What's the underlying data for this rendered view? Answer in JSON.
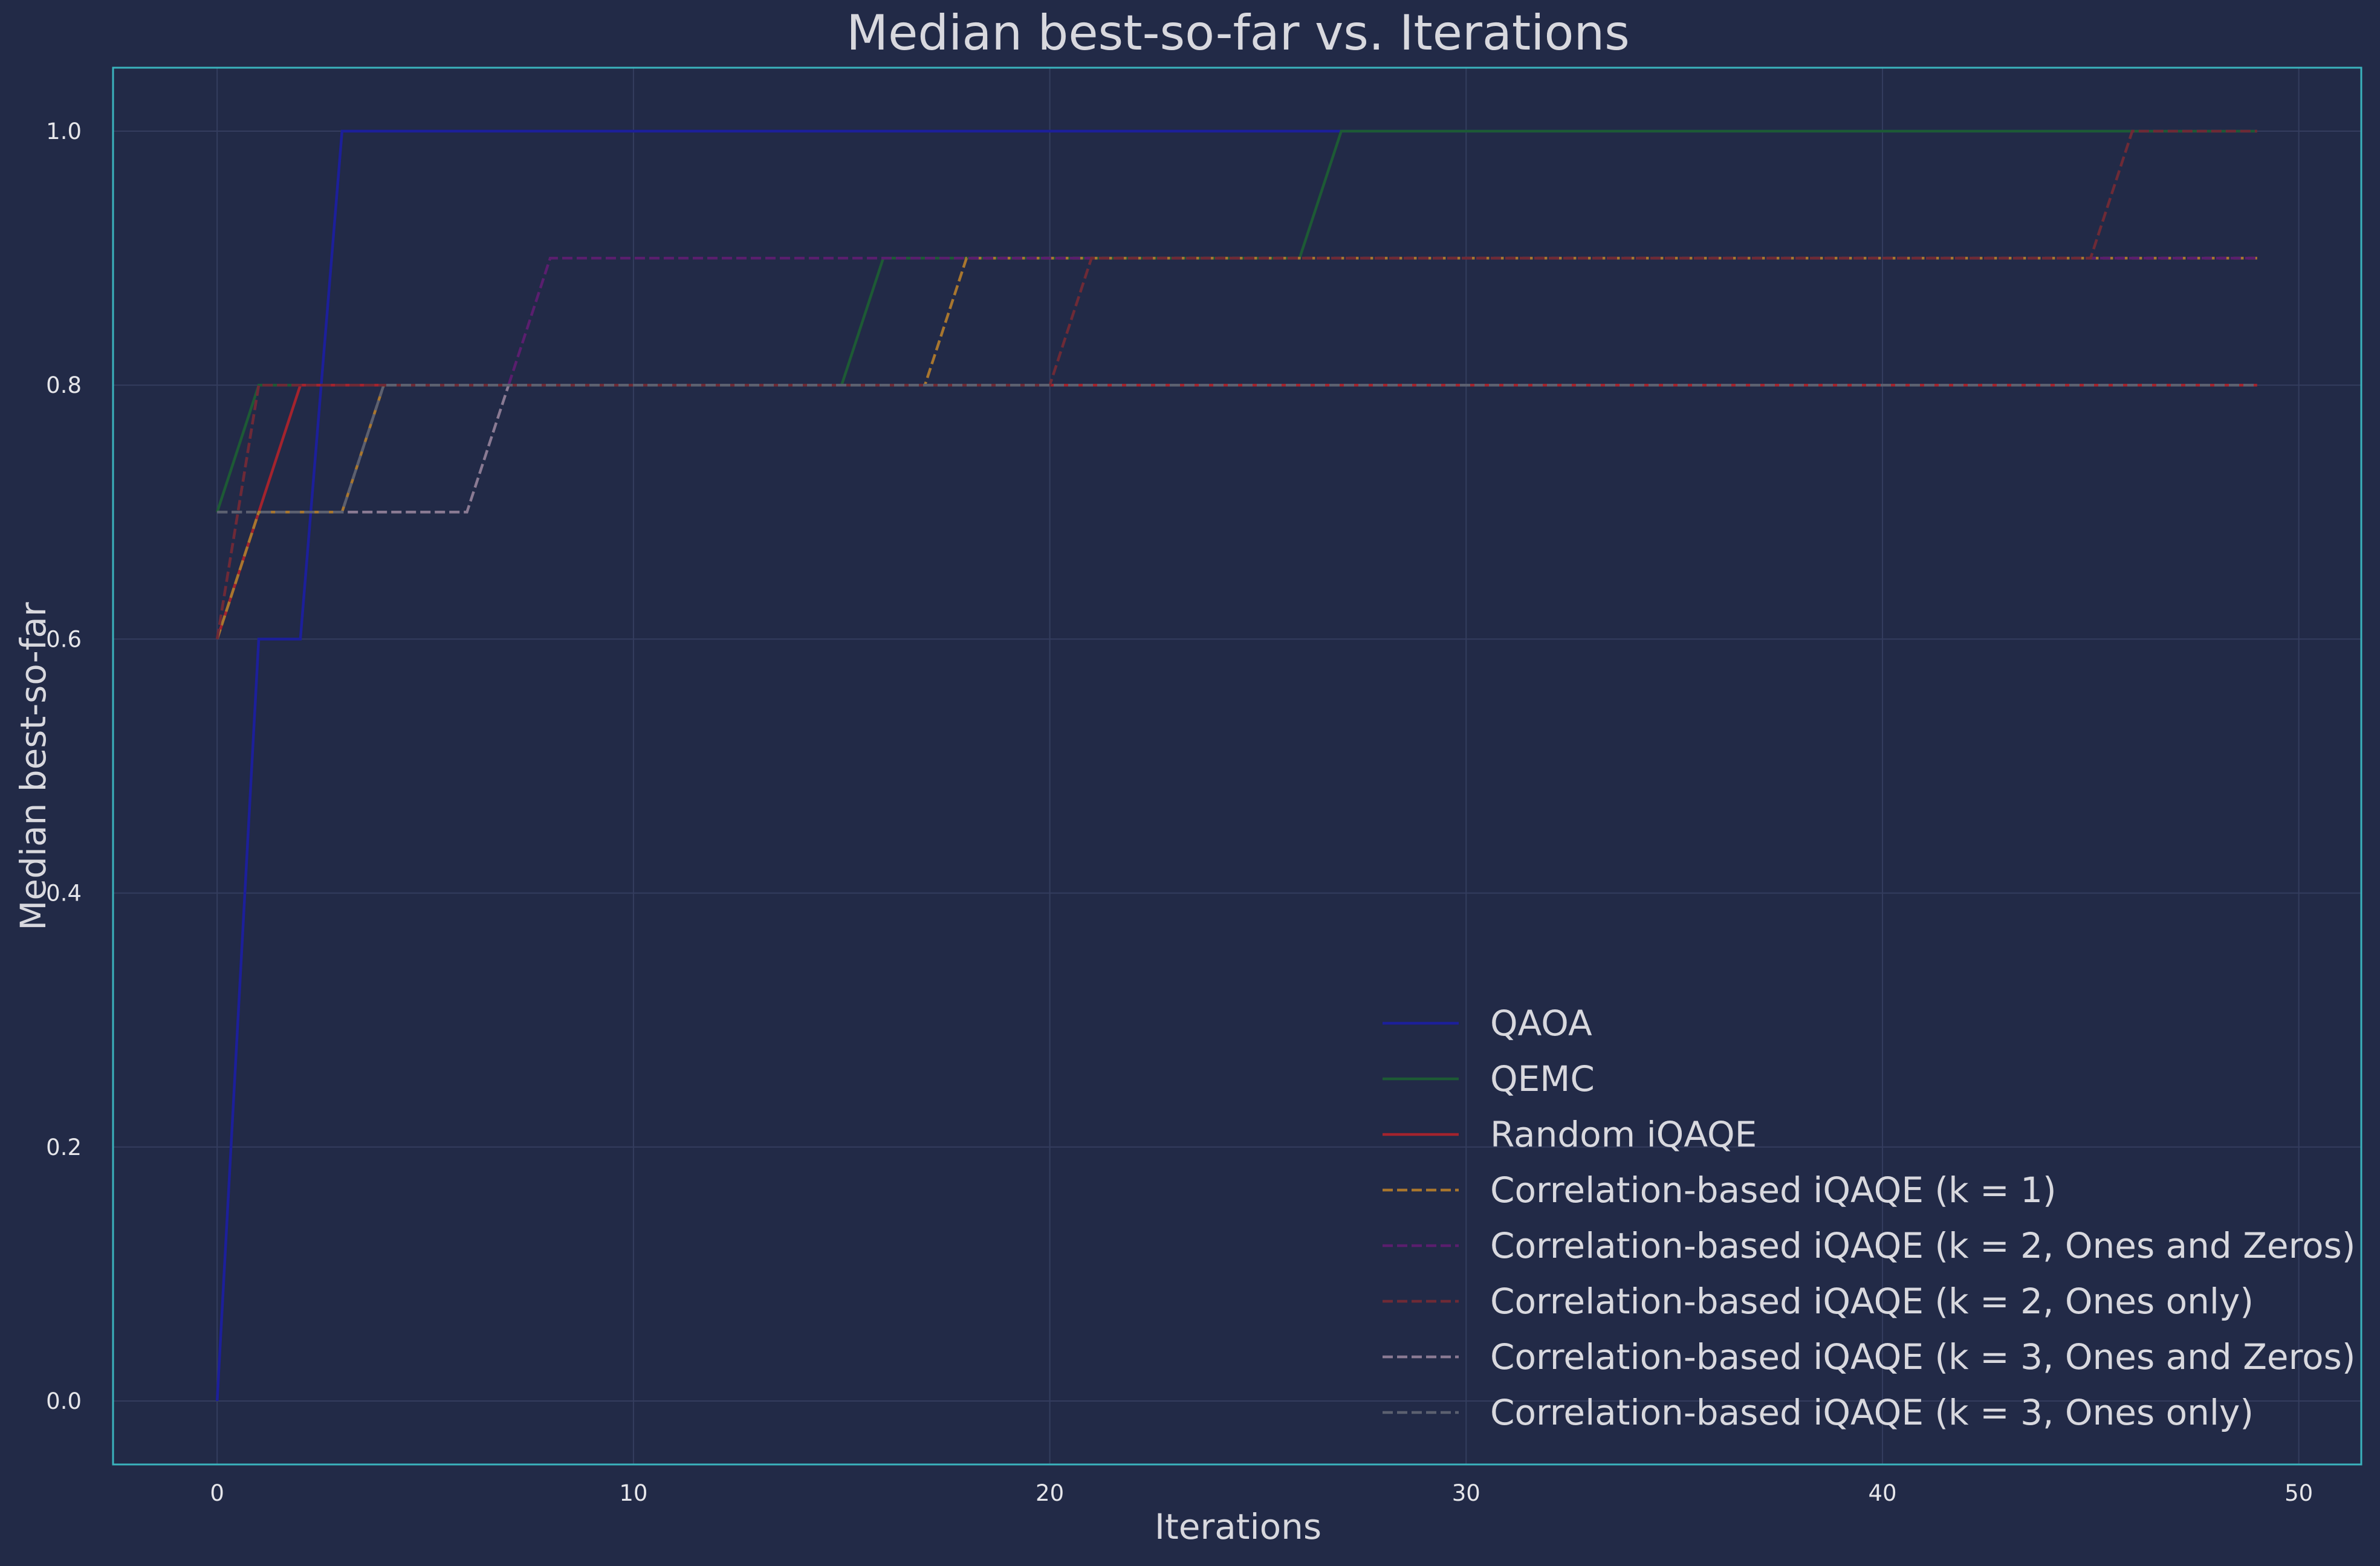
{
  "chart_data": {
    "type": "line",
    "title": "Median best-so-far vs. Iterations",
    "xlabel": "Iterations",
    "ylabel": "Median best-so-far",
    "xlim": [
      -2.5,
      51.5
    ],
    "ylim": [
      -0.05,
      1.05
    ],
    "xticks": [
      0,
      10,
      20,
      30,
      40,
      50
    ],
    "yticks": [
      0.0,
      0.2,
      0.4,
      0.6,
      0.8,
      1.0
    ],
    "grid": true,
    "legend_position": "lower right",
    "series": [
      {
        "name": "QAOA",
        "color": "#1c1f9a",
        "dashed": false,
        "points": [
          [
            0,
            0.0
          ],
          [
            1,
            0.6
          ],
          [
            2,
            0.6
          ],
          [
            3,
            1.0
          ],
          [
            27,
            1.0
          ],
          [
            49,
            1.0
          ]
        ]
      },
      {
        "name": "QEMC",
        "color": "#1d5a35",
        "dashed": false,
        "points": [
          [
            0,
            0.7
          ],
          [
            1,
            0.8
          ],
          [
            15,
            0.8
          ],
          [
            16,
            0.9
          ],
          [
            26,
            0.9
          ],
          [
            27,
            1.0
          ],
          [
            49,
            1.0
          ]
        ]
      },
      {
        "name": "Random iQAQE",
        "color": "#a3232d",
        "dashed": false,
        "points": [
          [
            0,
            0.6
          ],
          [
            2,
            0.8
          ],
          [
            49,
            0.8
          ]
        ]
      },
      {
        "name": "Correlation-based iQAQE (k = 1)",
        "color": "#a8762e",
        "dashed": true,
        "points": [
          [
            0,
            0.6
          ],
          [
            1,
            0.7
          ],
          [
            3,
            0.7
          ],
          [
            4,
            0.8
          ],
          [
            17,
            0.8
          ],
          [
            18,
            0.9
          ],
          [
            49,
            0.9
          ]
        ]
      },
      {
        "name": "Correlation-based iQAQE (k = 2, Ones and Zeros)",
        "color": "#5a1e6e",
        "dashed": true,
        "points": [
          [
            0,
            0.6
          ],
          [
            1,
            0.8
          ],
          [
            7,
            0.8
          ],
          [
            8,
            0.9
          ],
          [
            49,
            0.9
          ]
        ]
      },
      {
        "name": "Correlation-based iQAQE (k = 2, Ones only)",
        "color": "#6e2a36",
        "dashed": true,
        "points": [
          [
            0,
            0.6
          ],
          [
            1,
            0.8
          ],
          [
            20,
            0.8
          ],
          [
            21,
            0.9
          ],
          [
            45,
            0.9
          ],
          [
            46,
            1.0
          ],
          [
            49,
            1.0
          ]
        ]
      },
      {
        "name": "Correlation-based iQAQE (k = 3, Ones and Zeros)",
        "color": "#8a7a93",
        "dashed": true,
        "points": [
          [
            0,
            0.7
          ],
          [
            6,
            0.7
          ],
          [
            7,
            0.8
          ],
          [
            49,
            0.8
          ]
        ]
      },
      {
        "name": "Correlation-based iQAQE (k = 3, Ones only)",
        "color": "#5c6070",
        "dashed": true,
        "points": [
          [
            0,
            0.7
          ],
          [
            3,
            0.7
          ],
          [
            4,
            0.8
          ],
          [
            49,
            0.8
          ]
        ]
      }
    ]
  },
  "colors": {
    "background": "#222a47",
    "axes_border": "#3ab3bd",
    "grid": "#343d5e"
  }
}
